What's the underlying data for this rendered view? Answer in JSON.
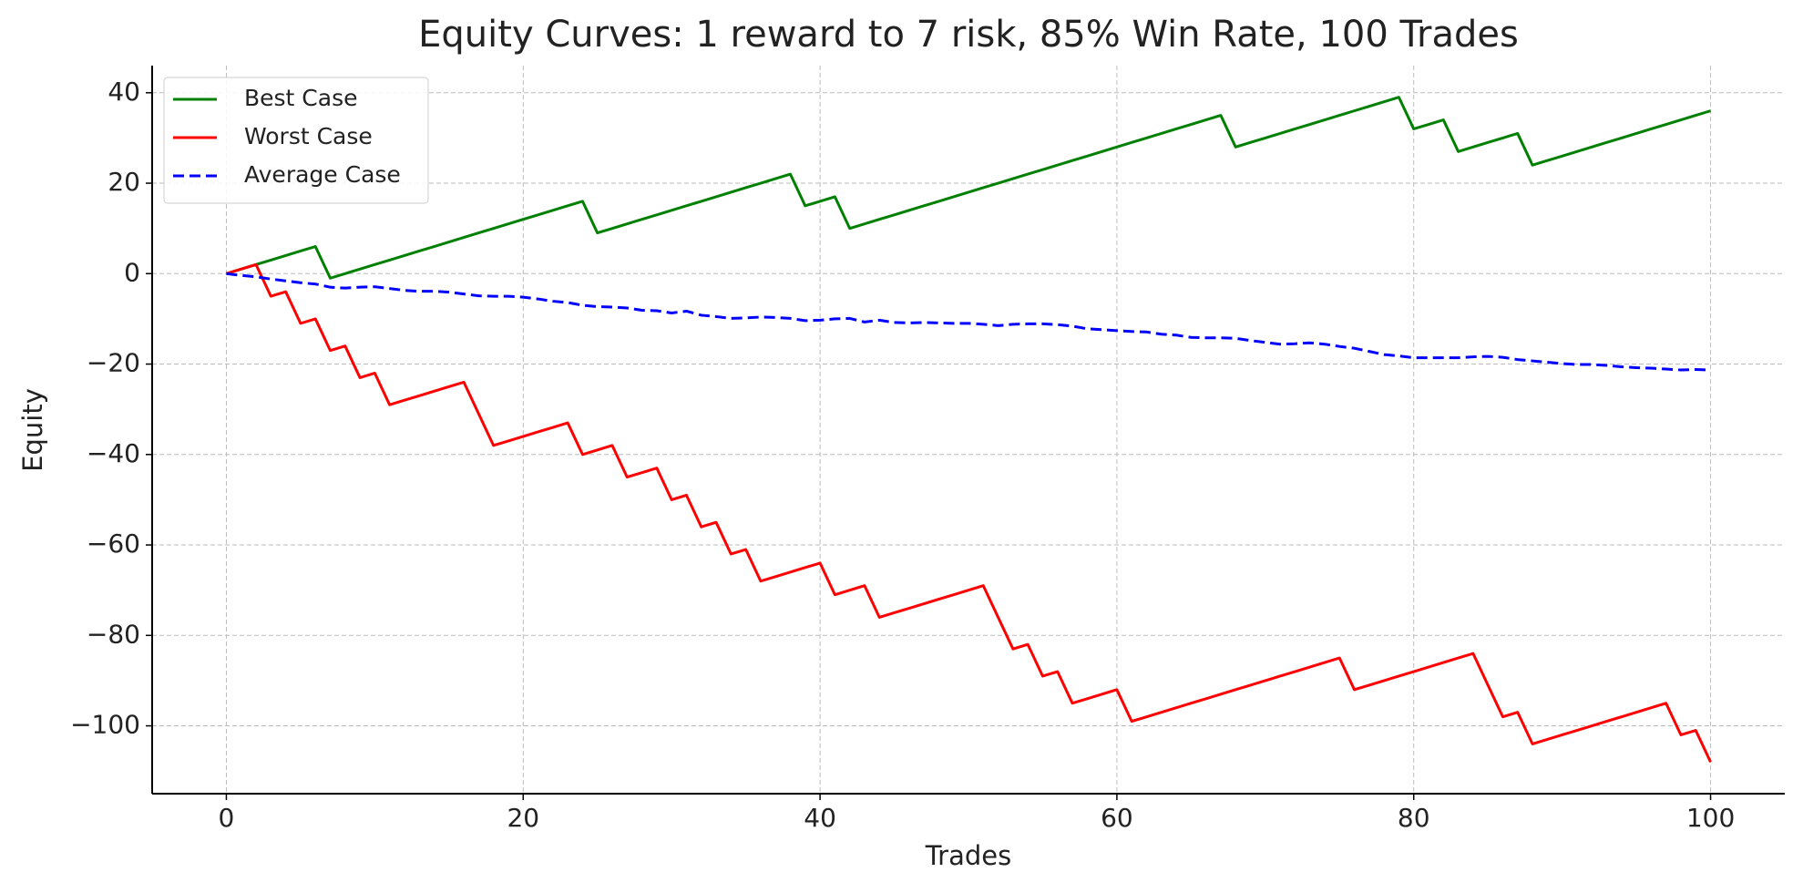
{
  "chart_data": {
    "type": "line",
    "title": "Equity Curves: 1 reward to 7 risk, 85% Win Rate, 100 Trades",
    "xlabel": "Trades",
    "ylabel": "Equity",
    "x": [
      0,
      1,
      2,
      3,
      4,
      5,
      6,
      7,
      8,
      9,
      10,
      11,
      12,
      13,
      14,
      15,
      16,
      17,
      18,
      19,
      20,
      21,
      22,
      23,
      24,
      25,
      26,
      27,
      28,
      29,
      30,
      31,
      32,
      33,
      34,
      35,
      36,
      37,
      38,
      39,
      40,
      41,
      42,
      43,
      44,
      45,
      46,
      47,
      48,
      49,
      50,
      51,
      52,
      53,
      54,
      55,
      56,
      57,
      58,
      59,
      60,
      61,
      62,
      63,
      64,
      65,
      66,
      67,
      68,
      69,
      70,
      71,
      72,
      73,
      74,
      75,
      76,
      77,
      78,
      79,
      80,
      81,
      82,
      83,
      84,
      85,
      86,
      87,
      88,
      89,
      90,
      91,
      92,
      93,
      94,
      95,
      96,
      97,
      98,
      99,
      100
    ],
    "series": [
      {
        "name": "Best Case",
        "color": "#008000",
        "linestyle": "solid",
        "values": [
          0,
          1,
          2,
          3,
          4,
          5,
          6,
          -1,
          0,
          1,
          2,
          3,
          4,
          5,
          6,
          7,
          8,
          9,
          10,
          11,
          12,
          13,
          14,
          15,
          16,
          9,
          10,
          11,
          12,
          13,
          14,
          15,
          16,
          17,
          18,
          19,
          20,
          21,
          22,
          15,
          16,
          17,
          10,
          11,
          12,
          13,
          14,
          15,
          16,
          17,
          18,
          19,
          20,
          21,
          22,
          23,
          24,
          25,
          26,
          27,
          28,
          29,
          30,
          31,
          32,
          33,
          34,
          35,
          28,
          29,
          30,
          31,
          32,
          33,
          34,
          35,
          36,
          37,
          38,
          39,
          32,
          33,
          34,
          27,
          28,
          29,
          30,
          31,
          24,
          25,
          26,
          27,
          28,
          29,
          30,
          31,
          32,
          33,
          34,
          35,
          36
        ]
      },
      {
        "name": "Worst Case",
        "color": "#ff0000",
        "linestyle": "solid",
        "values": [
          0,
          1,
          2,
          -5,
          -4,
          -11,
          -10,
          -17,
          -16,
          -23,
          -22,
          -29,
          -28,
          -27,
          -26,
          -25,
          -24,
          -31,
          -38,
          -37,
          -36,
          -35,
          -34,
          -33,
          -40,
          -39,
          -38,
          -45,
          -44,
          -43,
          -50,
          -49,
          -56,
          -55,
          -62,
          -61,
          -68,
          -67,
          -66,
          -65,
          -64,
          -71,
          -70,
          -69,
          -76,
          -75,
          -74,
          -73,
          -72,
          -71,
          -70,
          -69,
          -76,
          -83,
          -82,
          -89,
          -88,
          -95,
          -94,
          -93,
          -92,
          -99,
          -98,
          -97,
          -96,
          -95,
          -94,
          -93,
          -92,
          -91,
          -90,
          -89,
          -88,
          -87,
          -86,
          -85,
          -92,
          -91,
          -90,
          -89,
          -88,
          -87,
          -86,
          -85,
          -84,
          -91,
          -98,
          -97,
          -104,
          -103,
          -102,
          -101,
          -100,
          -99,
          -98,
          -97,
          -96,
          -95,
          -102,
          -101,
          -108
        ]
      },
      {
        "name": "Average Case",
        "color": "#0000ff",
        "linestyle": "dashed",
        "values": [
          0,
          -0.4,
          -0.7,
          -1.2,
          -1.6,
          -2.0,
          -2.3,
          -3.0,
          -3.2,
          -3.0,
          -2.9,
          -3.3,
          -3.7,
          -3.9,
          -3.9,
          -4.1,
          -4.5,
          -4.9,
          -5.0,
          -5.0,
          -5.2,
          -5.6,
          -6.1,
          -6.4,
          -7.0,
          -7.3,
          -7.4,
          -7.6,
          -8.1,
          -8.2,
          -8.7,
          -8.3,
          -9.2,
          -9.5,
          -9.9,
          -9.8,
          -9.6,
          -9.7,
          -9.9,
          -10.4,
          -10.3,
          -10.0,
          -9.9,
          -10.7,
          -10.3,
          -10.8,
          -10.9,
          -10.8,
          -10.9,
          -11.0,
          -11.0,
          -11.2,
          -11.5,
          -11.2,
          -11.1,
          -11.1,
          -11.3,
          -11.6,
          -12.2,
          -12.4,
          -12.6,
          -12.8,
          -12.9,
          -13.4,
          -13.6,
          -14.1,
          -14.2,
          -14.2,
          -14.3,
          -14.8,
          -15.2,
          -15.6,
          -15.5,
          -15.3,
          -15.6,
          -16.1,
          -16.5,
          -17.2,
          -17.9,
          -18.2,
          -18.6,
          -18.6,
          -18.6,
          -18.6,
          -18.4,
          -18.3,
          -18.5,
          -19.0,
          -19.3,
          -19.6,
          -19.9,
          -20.1,
          -20.1,
          -20.3,
          -20.6,
          -20.8,
          -20.9,
          -21.1,
          -21.3,
          -21.2,
          -21.3
        ]
      }
    ],
    "xlim": [
      -5,
      105
    ],
    "ylim": [
      -115,
      46
    ],
    "xticks": [
      0,
      20,
      40,
      60,
      80,
      100
    ],
    "yticks": [
      {
        "value": -100,
        "label": "−100"
      },
      {
        "value": -80,
        "label": "−80"
      },
      {
        "value": -60,
        "label": "−60"
      },
      {
        "value": -40,
        "label": "−40"
      },
      {
        "value": -20,
        "label": "−20"
      },
      0,
      20,
      40
    ],
    "grid": true,
    "legend": "upper-left"
  }
}
